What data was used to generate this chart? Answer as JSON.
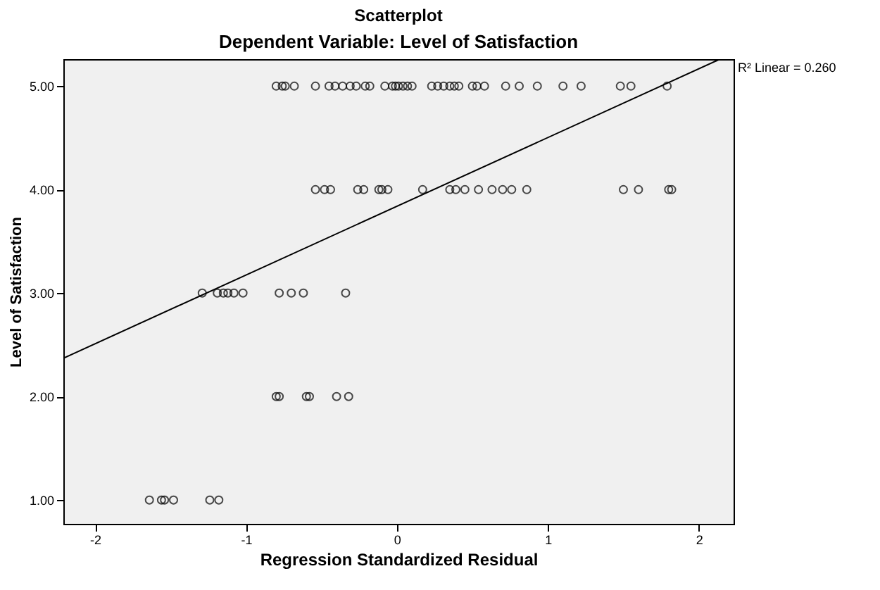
{
  "chart_data": {
    "type": "scatter",
    "title": "Scatterplot",
    "subtitle": "Dependent Variable: Level of Satisfaction",
    "xlabel": "Regression Standardized Residual",
    "ylabel": "Level of Satisfaction",
    "grid": false,
    "xlim": [
      -2.21,
      2.23
    ],
    "ylim": [
      0.77,
      5.26
    ],
    "xticks": [
      -2,
      -1,
      0,
      1,
      2
    ],
    "yticks": [
      {
        "value": 1,
        "label": "1.00"
      },
      {
        "value": 2,
        "label": "2.00"
      },
      {
        "value": 3,
        "label": "3.00"
      },
      {
        "value": 4,
        "label": "4.00"
      },
      {
        "value": 5,
        "label": "5.00"
      }
    ],
    "annotations": [
      "R² Linear = 0.260"
    ],
    "series": [
      {
        "color": "#000000",
        "marker": "circle",
        "x": [
          -0.8,
          -0.76,
          -0.74,
          -0.68,
          -0.54,
          -0.45,
          -0.41,
          -0.36,
          -0.31,
          -0.27,
          -0.21,
          -0.18,
          -0.08,
          -0.03,
          -0.01,
          0.01,
          0.04,
          0.07,
          0.1,
          0.23,
          0.27,
          0.31,
          0.35,
          0.38,
          0.41,
          0.5,
          0.53,
          0.58,
          0.72,
          0.81,
          0.93,
          1.1,
          1.22,
          1.48,
          1.55,
          1.79,
          -0.54,
          -0.48,
          -0.44,
          -0.26,
          -0.22,
          -0.12,
          -0.1,
          -0.06,
          0.17,
          0.35,
          0.39,
          0.45,
          0.54,
          0.63,
          0.7,
          0.76,
          0.86,
          1.5,
          1.6,
          1.8,
          1.82,
          -1.29,
          -1.19,
          -1.15,
          -1.12,
          -1.08,
          -1.02,
          -0.78,
          -0.7,
          -0.62,
          -0.34,
          -0.8,
          -0.78,
          -0.6,
          -0.58,
          -0.4,
          -0.32,
          -1.64,
          -1.56,
          -1.54,
          -1.48,
          -1.24,
          -1.18
        ],
        "values": [
          5,
          5,
          5,
          5,
          5,
          5,
          5,
          5,
          5,
          5,
          5,
          5,
          5,
          5,
          5,
          5,
          5,
          5,
          5,
          5,
          5,
          5,
          5,
          5,
          5,
          5,
          5,
          5,
          5,
          5,
          5,
          5,
          5,
          5,
          5,
          5,
          4,
          4,
          4,
          4,
          4,
          4,
          4,
          4,
          4,
          4,
          4,
          4,
          4,
          4,
          4,
          4,
          4,
          4,
          4,
          4,
          4,
          3,
          3,
          3,
          3,
          3,
          3,
          3,
          3,
          3,
          3,
          2,
          2,
          2,
          2,
          2,
          2,
          1,
          1,
          1,
          1,
          1,
          1
        ]
      },
      {
        "type": "line",
        "marker": "none",
        "color": "#000000",
        "x": [
          -2.21,
          2.14
        ],
        "values": [
          2.37,
          5.26
        ]
      }
    ]
  }
}
